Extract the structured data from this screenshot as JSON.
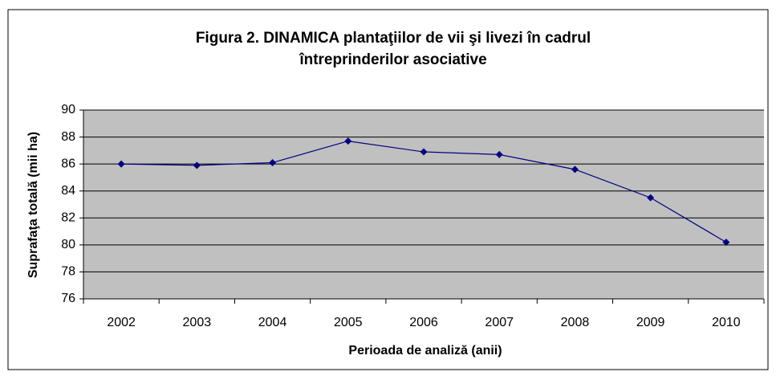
{
  "chart_data": {
    "type": "line",
    "title": [
      "Figura 2. DINAMICA plantaţiilor de vii şi livezi în cadrul",
      "întreprinderilor asociative"
    ],
    "x_label": "Perioada de analiză (anii)",
    "y_label": "Suprafaţa totală (mii ha)",
    "categories": [
      "2002",
      "2003",
      "2004",
      "2005",
      "2006",
      "2007",
      "2008",
      "2009",
      "2010"
    ],
    "series": [
      {
        "name": "Suprafaţa totală",
        "color": "#000080",
        "values": [
          86.0,
          85.9,
          86.1,
          87.7,
          86.9,
          86.7,
          85.6,
          83.5,
          80.2
        ]
      }
    ],
    "ylim": [
      76,
      90
    ],
    "yticks": [
      76,
      78,
      80,
      82,
      84,
      86,
      88,
      90
    ],
    "grid": true,
    "legend": false
  }
}
